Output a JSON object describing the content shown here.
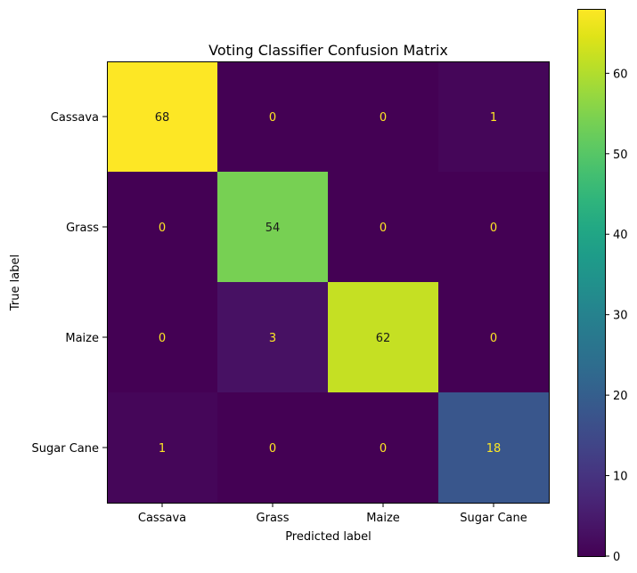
{
  "chart_data": {
    "type": "heatmap",
    "title": "Voting Classifier Confusion Matrix",
    "xlabel": "Predicted label",
    "ylabel": "True label",
    "x_categories": [
      "Cassava",
      "Grass",
      "Maize",
      "Sugar Cane"
    ],
    "y_categories": [
      "Cassava",
      "Grass",
      "Maize",
      "Sugar Cane"
    ],
    "values": [
      [
        68,
        0,
        0,
        1
      ],
      [
        0,
        54,
        0,
        0
      ],
      [
        0,
        3,
        62,
        0
      ],
      [
        1,
        0,
        0,
        18
      ]
    ],
    "colormap": "viridis",
    "value_range": [
      0,
      68
    ],
    "colorbar_ticks": [
      0,
      10,
      20,
      30,
      40,
      50,
      60
    ],
    "cell_text_colors": {
      "on_dark": "#fde725",
      "on_light": "#1a1a1a"
    }
  }
}
